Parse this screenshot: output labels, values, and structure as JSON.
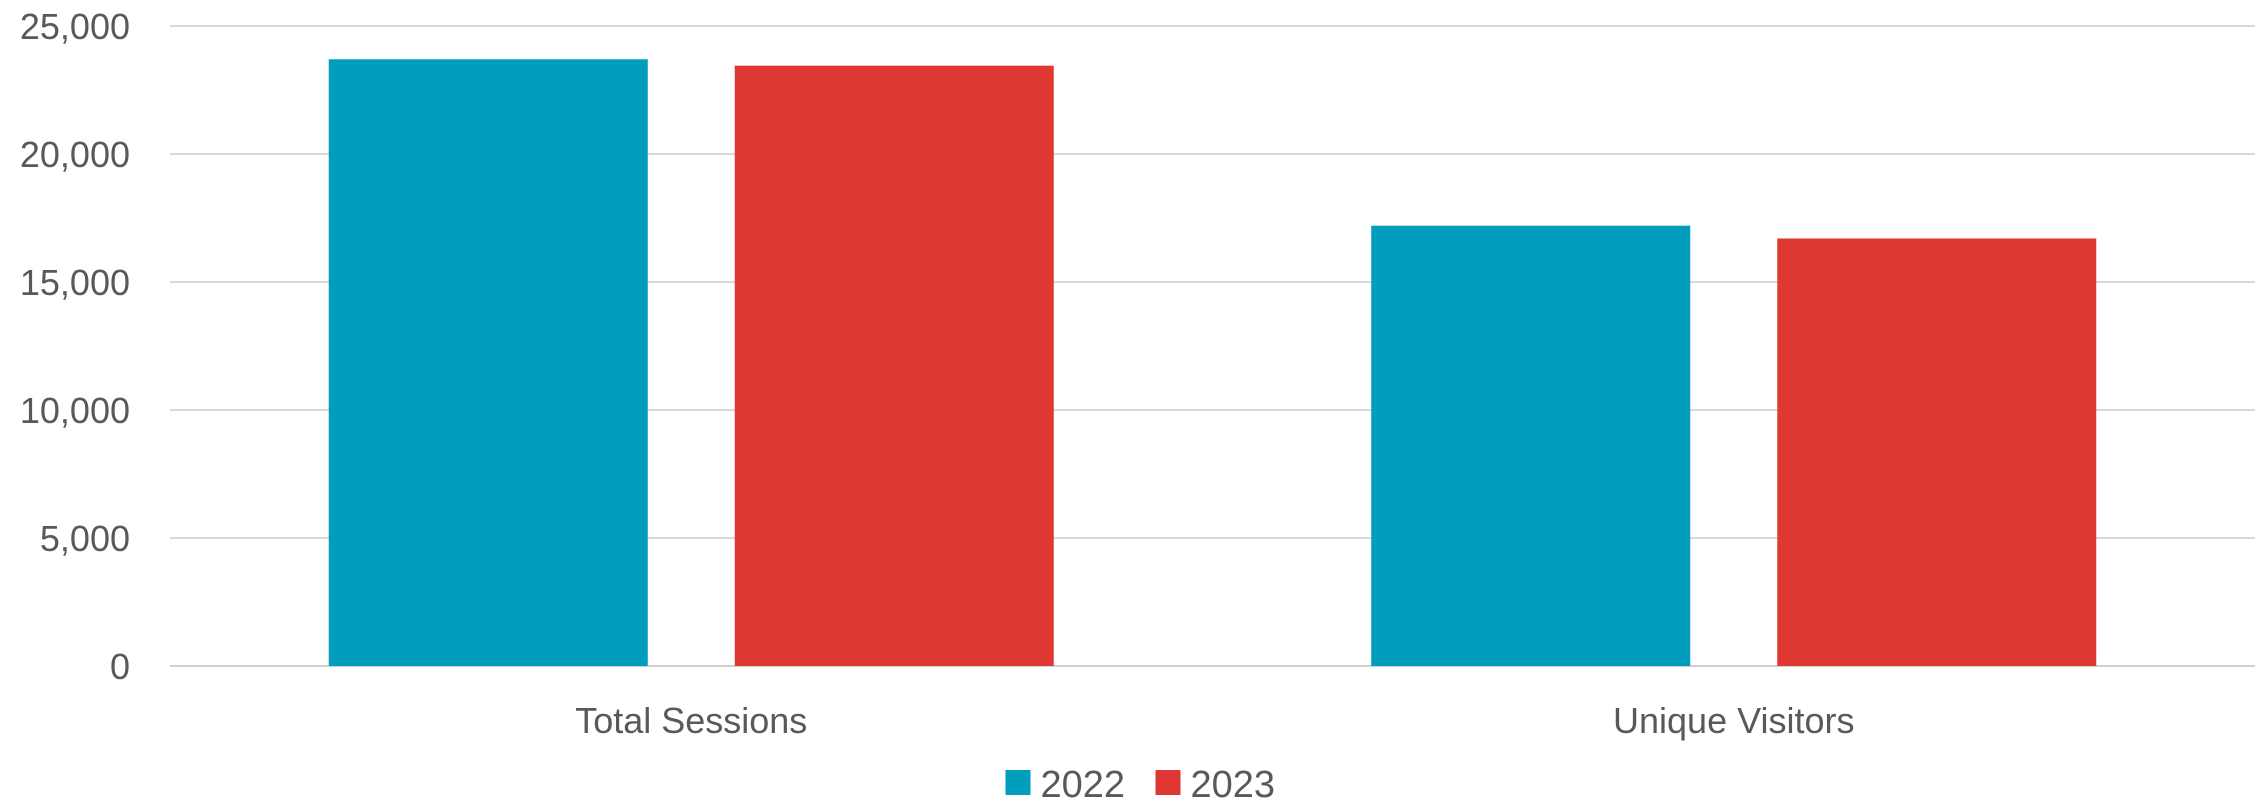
{
  "chart_data": {
    "type": "bar",
    "categories": [
      "Total Sessions",
      "Unique Visitors"
    ],
    "series": [
      {
        "name": "2022",
        "color": "#009dbd",
        "values": [
          23700,
          17200
        ]
      },
      {
        "name": "2023",
        "color": "#df3832",
        "values": [
          23450,
          16700
        ]
      }
    ],
    "yticks": [
      "0",
      "5,000",
      "10,000",
      "15,000",
      "20,000",
      "25,000"
    ],
    "ylim": [
      0,
      25000
    ],
    "grid": true,
    "legend_position": "bottom"
  }
}
